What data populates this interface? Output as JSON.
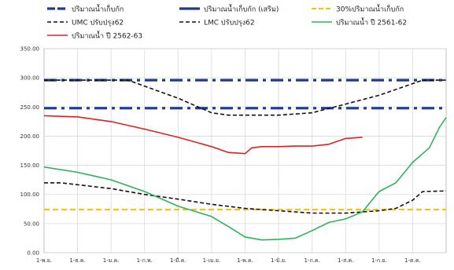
{
  "chart_data": {
    "type": "line",
    "title": "",
    "xlabel": "",
    "ylabel": "",
    "ylim": [
      0,
      350
    ],
    "yticks": [
      "0.00",
      "50.00",
      "100.00",
      "150.00",
      "200.00",
      "250.00",
      "300.00",
      "350.00"
    ],
    "categories": [
      "1-พ.ย.",
      "1-ธ.ค.",
      "1-ม.ค.",
      "1-ก.พ.",
      "1-มี.ค.",
      "1-เม.ย.",
      "1-พ.ค.",
      "1-มิ.ย.",
      "1-ก.ค.",
      "1-ส.ค.",
      "1-ก.ย.",
      "1-ต.ค."
    ],
    "grid": true,
    "legend_position": "top",
    "series": [
      {
        "name": "ปริมาณน้ำเก็บกัก",
        "color": "#1f3a93",
        "style": "dashdot-thick",
        "x": [
          0,
          12
        ],
        "y": [
          248,
          248
        ]
      },
      {
        "name": "ปริมาณน้ำเก็บกัก (เสริม)",
        "color": "#1f3a93",
        "style": "dashdot-thick",
        "x": [
          0,
          12
        ],
        "y": [
          296,
          296
        ]
      },
      {
        "name": "30%ปริมาณน้ำเก็บกัก",
        "color": "#f0c419",
        "style": "dashed",
        "x": [
          0,
          12
        ],
        "y": [
          74,
          74
        ]
      },
      {
        "name": "UMC ปรับปรุง62",
        "color": "#111111",
        "style": "dashed",
        "x": [
          0,
          2.5,
          4,
          5,
          5.5,
          7,
          8,
          9,
          10,
          11.3,
          12
        ],
        "y": [
          296,
          296,
          265,
          240,
          236,
          236,
          240,
          255,
          270,
          296,
          296
        ]
      },
      {
        "name": "LMC ปรับปรุง62",
        "color": "#111111",
        "style": "dashed",
        "x": [
          0,
          0.5,
          2,
          3,
          4,
          5,
          6,
          7,
          8,
          9,
          10,
          10.5,
          11,
          11.3,
          12
        ],
        "y": [
          120,
          120,
          110,
          100,
          92,
          83,
          76,
          72,
          68,
          68,
          72,
          76,
          90,
          105,
          106
        ]
      },
      {
        "name": "ปริมาณน้ำ ปี 2561-62",
        "color": "#2eb35a",
        "style": "solid",
        "x": [
          0,
          1,
          2,
          3,
          4,
          5,
          5.5,
          6,
          6.5,
          7,
          7.5,
          8,
          8.5,
          9,
          9.5,
          10,
          10.5,
          11,
          11.5,
          11.8,
          12
        ],
        "y": [
          147,
          138,
          125,
          105,
          80,
          62,
          45,
          27,
          22,
          23,
          25,
          38,
          52,
          58,
          70,
          105,
          120,
          155,
          180,
          215,
          232
        ]
      },
      {
        "name": "ปริมาณน้ำ ปี 2562-63",
        "color": "#e02020",
        "style": "solid",
        "x": [
          0,
          1,
          2,
          3,
          4,
          5,
          5.5,
          6,
          6.2,
          6.5,
          7,
          7.5,
          8,
          8.5,
          9,
          9.5
        ],
        "y": [
          235,
          233,
          225,
          212,
          198,
          182,
          172,
          170,
          180,
          182,
          182,
          183,
          183,
          186,
          196,
          198
        ]
      }
    ]
  }
}
